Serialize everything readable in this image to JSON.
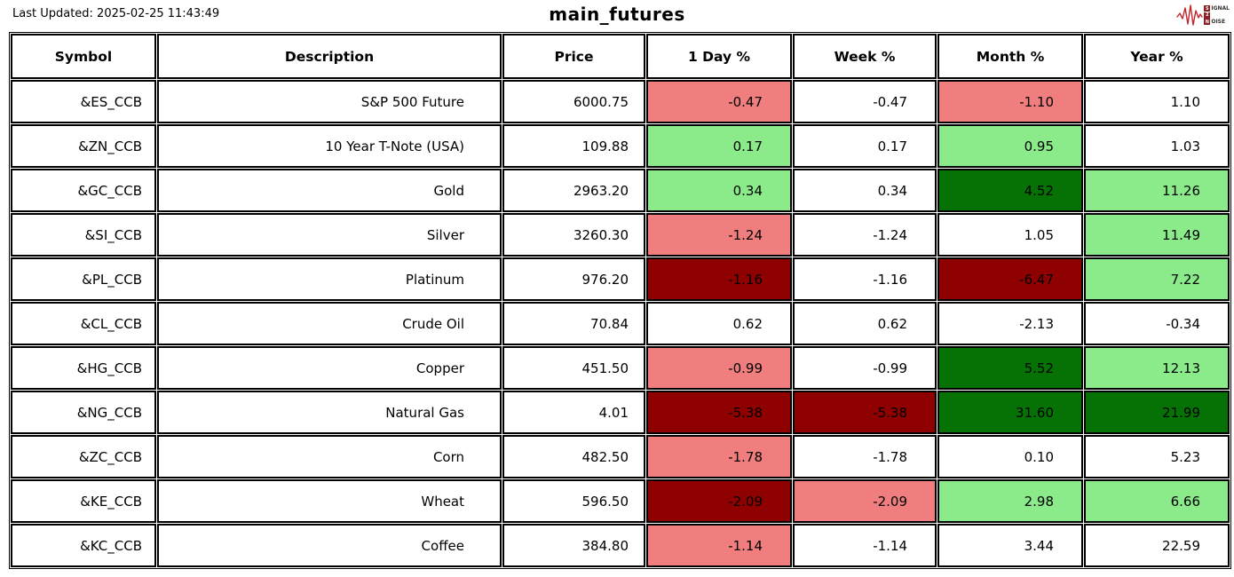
{
  "page": {
    "last_updated": "Last Updated: 2025-02-25 11:43:49",
    "title": "main_futures"
  },
  "logo": {
    "name": "signal-2-noise",
    "waveform_color": "#c4242b",
    "box_color": "#8c1f24",
    "line1_first": "S",
    "line1_rest": "IGNAL",
    "line2_first": "2",
    "line2_rest": "",
    "line3_first": "N",
    "line3_rest": "OISE"
  },
  "chart_data": {
    "type": "table",
    "title": "main_futures",
    "columns": [
      "Symbol",
      "Description",
      "Price",
      "1 Day %",
      "Week %",
      "Month %",
      "Year %"
    ],
    "colors": {
      "neg_light": "#f07e7e",
      "neg_dark": "#8f0000",
      "pos_light": "#8beb8b",
      "pos_dark": "#067206",
      "white": "#ffffff"
    },
    "rows": [
      {
        "symbol": "&ES_CCB",
        "description": "S&P 500 Future",
        "price": "6000.75",
        "day": "-0.47",
        "week": "-0.47",
        "month": "-1.10",
        "year": "1.10",
        "day_bg": "neg_light",
        "week_bg": "white",
        "month_bg": "neg_light",
        "year_bg": "white"
      },
      {
        "symbol": "&ZN_CCB",
        "description": "10 Year T-Note (USA)",
        "price": "109.88",
        "day": "0.17",
        "week": "0.17",
        "month": "0.95",
        "year": "1.03",
        "day_bg": "pos_light",
        "week_bg": "white",
        "month_bg": "pos_light",
        "year_bg": "white"
      },
      {
        "symbol": "&GC_CCB",
        "description": "Gold",
        "price": "2963.20",
        "day": "0.34",
        "week": "0.34",
        "month": "4.52",
        "year": "11.26",
        "day_bg": "pos_light",
        "week_bg": "white",
        "month_bg": "pos_dark",
        "year_bg": "pos_light"
      },
      {
        "symbol": "&SI_CCB",
        "description": "Silver",
        "price": "3260.30",
        "day": "-1.24",
        "week": "-1.24",
        "month": "1.05",
        "year": "11.49",
        "day_bg": "neg_light",
        "week_bg": "white",
        "month_bg": "white",
        "year_bg": "pos_light"
      },
      {
        "symbol": "&PL_CCB",
        "description": "Platinum",
        "price": "976.20",
        "day": "-1.16",
        "week": "-1.16",
        "month": "-6.47",
        "year": "7.22",
        "day_bg": "neg_dark",
        "week_bg": "white",
        "month_bg": "neg_dark",
        "year_bg": "pos_light"
      },
      {
        "symbol": "&CL_CCB",
        "description": "Crude Oil",
        "price": "70.84",
        "day": "0.62",
        "week": "0.62",
        "month": "-2.13",
        "year": "-0.34",
        "day_bg": "white",
        "week_bg": "white",
        "month_bg": "white",
        "year_bg": "white"
      },
      {
        "symbol": "&HG_CCB",
        "description": "Copper",
        "price": "451.50",
        "day": "-0.99",
        "week": "-0.99",
        "month": "5.52",
        "year": "12.13",
        "day_bg": "neg_light",
        "week_bg": "white",
        "month_bg": "pos_dark",
        "year_bg": "pos_light"
      },
      {
        "symbol": "&NG_CCB",
        "description": "Natural Gas",
        "price": "4.01",
        "day": "-5.38",
        "week": "-5.38",
        "month": "31.60",
        "year": "21.99",
        "day_bg": "neg_dark",
        "week_bg": "neg_dark",
        "month_bg": "pos_dark",
        "year_bg": "pos_dark"
      },
      {
        "symbol": "&ZC_CCB",
        "description": "Corn",
        "price": "482.50",
        "day": "-1.78",
        "week": "-1.78",
        "month": "0.10",
        "year": "5.23",
        "day_bg": "neg_light",
        "week_bg": "white",
        "month_bg": "white",
        "year_bg": "white"
      },
      {
        "symbol": "&KE_CCB",
        "description": "Wheat",
        "price": "596.50",
        "day": "-2.09",
        "week": "-2.09",
        "month": "2.98",
        "year": "6.66",
        "day_bg": "neg_dark",
        "week_bg": "neg_light",
        "month_bg": "pos_light",
        "year_bg": "pos_light"
      },
      {
        "symbol": "&KC_CCB",
        "description": "Coffee",
        "price": "384.80",
        "day": "-1.14",
        "week": "-1.14",
        "month": "3.44",
        "year": "22.59",
        "day_bg": "neg_light",
        "week_bg": "white",
        "month_bg": "white",
        "year_bg": "white"
      }
    ]
  }
}
